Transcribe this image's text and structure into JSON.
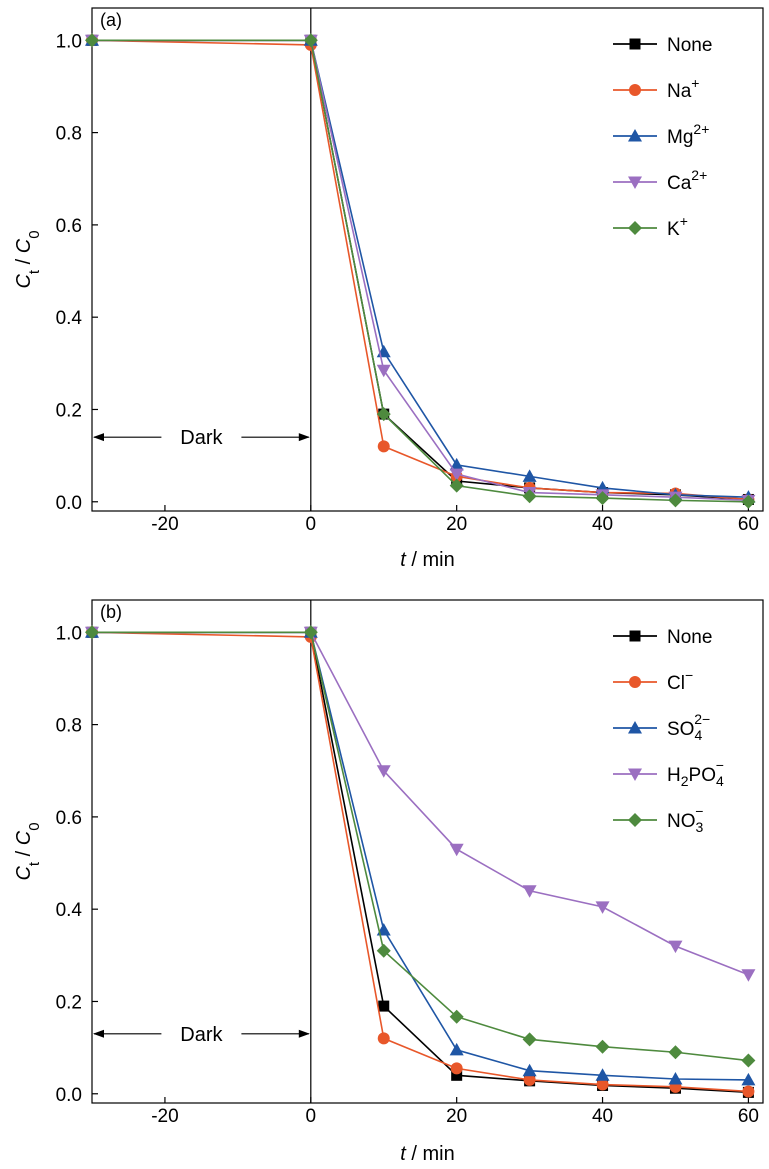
{
  "chart_data": [
    {
      "type": "line",
      "panel_label": "(a)",
      "xlabel": {
        "var": "t",
        "unit": " / min"
      },
      "ylabel": {
        "var": "C",
        "sub1": "t",
        "sep": " / ",
        "var2": "C",
        "sub2": "0"
      },
      "xlim": [
        -30,
        62
      ],
      "ylim": [
        -0.02,
        1.07
      ],
      "xticks": [
        -20,
        0,
        20,
        40,
        60
      ],
      "yticks": [
        0.0,
        0.2,
        0.4,
        0.6,
        0.8,
        1.0
      ],
      "ytick_labels": [
        "0.0",
        "0.2",
        "0.4",
        "0.6",
        "0.8",
        "1.0"
      ],
      "xtick_labels": [
        "-20",
        "0",
        "20",
        "40",
        "60"
      ],
      "vline_x": 0,
      "grid": false,
      "legend_position": "top-right",
      "annotation": {
        "text": "Dark",
        "from_x": -30,
        "to_x": 0,
        "y": 0.14
      },
      "series": [
        {
          "name": "None",
          "sup": "",
          "sub": "",
          "tail": "",
          "color": "#000000",
          "marker": "square",
          "x": [
            -30,
            0,
            10,
            20,
            30,
            40,
            50,
            60
          ],
          "y": [
            1.0,
            1.0,
            0.19,
            0.045,
            0.03,
            0.02,
            0.015,
            0.005
          ]
        },
        {
          "name": "Na",
          "sup": "+",
          "sub": "",
          "tail": "",
          "color": "#e8572a",
          "marker": "circle",
          "x": [
            -30,
            0,
            10,
            20,
            30,
            40,
            50,
            60
          ],
          "y": [
            1.0,
            0.99,
            0.12,
            0.055,
            0.03,
            0.02,
            0.018,
            0.005
          ]
        },
        {
          "name": "Mg",
          "sup": "2+",
          "sub": "",
          "tail": "",
          "color": "#1f56a5",
          "marker": "triangle-up",
          "x": [
            -30,
            0,
            10,
            20,
            30,
            40,
            50,
            60
          ],
          "y": [
            1.0,
            1.0,
            0.325,
            0.08,
            0.055,
            0.03,
            0.015,
            0.01
          ]
        },
        {
          "name": "Ca",
          "sup": "2+",
          "sub": "",
          "tail": "",
          "color": "#9b6fc1",
          "marker": "triangle-down",
          "x": [
            -30,
            0,
            10,
            20,
            30,
            40,
            50,
            60
          ],
          "y": [
            1.0,
            1.0,
            0.285,
            0.06,
            0.02,
            0.015,
            0.01,
            0.003
          ]
        },
        {
          "name": "K",
          "sup": "+",
          "sub": "",
          "tail": "",
          "color": "#4e8a3e",
          "marker": "diamond",
          "x": [
            -30,
            0,
            10,
            20,
            30,
            40,
            50,
            60
          ],
          "y": [
            1.0,
            1.0,
            0.19,
            0.035,
            0.012,
            0.008,
            0.003,
            0.0
          ]
        }
      ]
    },
    {
      "type": "line",
      "panel_label": "(b)",
      "xlabel": {
        "var": "t",
        "unit": " / min"
      },
      "ylabel": {
        "var": "C",
        "sub1": "t",
        "sep": " / ",
        "var2": "C",
        "sub2": "0"
      },
      "xlim": [
        -30,
        62
      ],
      "ylim": [
        -0.02,
        1.07
      ],
      "xticks": [
        -20,
        0,
        20,
        40,
        60
      ],
      "yticks": [
        0.0,
        0.2,
        0.4,
        0.6,
        0.8,
        1.0
      ],
      "ytick_labels": [
        "0.0",
        "0.2",
        "0.4",
        "0.6",
        "0.8",
        "1.0"
      ],
      "xtick_labels": [
        "-20",
        "0",
        "20",
        "40",
        "60"
      ],
      "vline_x": 0,
      "grid": false,
      "legend_position": "top-right",
      "annotation": {
        "text": "Dark",
        "from_x": -30,
        "to_x": 0,
        "y": 0.13
      },
      "series": [
        {
          "name": "None",
          "sup": "",
          "sub": "",
          "tail": "",
          "color": "#000000",
          "marker": "square",
          "x": [
            -30,
            0,
            10,
            20,
            30,
            40,
            50,
            60
          ],
          "y": [
            1.0,
            1.0,
            0.19,
            0.04,
            0.028,
            0.018,
            0.012,
            0.003
          ]
        },
        {
          "name": "Cl",
          "sup": "−",
          "sub": "",
          "tail": "",
          "color": "#e8572a",
          "marker": "circle",
          "x": [
            -30,
            0,
            10,
            20,
            30,
            40,
            50,
            60
          ],
          "y": [
            1.0,
            0.99,
            0.12,
            0.055,
            0.03,
            0.02,
            0.015,
            0.005
          ]
        },
        {
          "name": "SO",
          "sup": "2−",
          "sub": "4",
          "tail": "",
          "color": "#1f56a5",
          "marker": "triangle-up",
          "x": [
            -30,
            0,
            10,
            20,
            30,
            40,
            50,
            60
          ],
          "y": [
            1.0,
            1.0,
            0.355,
            0.095,
            0.05,
            0.04,
            0.032,
            0.03
          ]
        },
        {
          "name": "H",
          "sup": "−",
          "sub": "2",
          "tail": "PO",
          "tail_sub": "4",
          "color": "#9b6fc1",
          "marker": "triangle-down",
          "x": [
            -30,
            0,
            10,
            20,
            30,
            40,
            50,
            60
          ],
          "y": [
            1.0,
            1.0,
            0.7,
            0.53,
            0.44,
            0.405,
            0.32,
            0.258
          ]
        },
        {
          "name": "NO",
          "sup": "−",
          "sub": "3",
          "tail": "",
          "color": "#4e8a3e",
          "marker": "diamond",
          "x": [
            -30,
            0,
            10,
            20,
            30,
            40,
            50,
            60
          ],
          "y": [
            1.0,
            1.0,
            0.31,
            0.167,
            0.118,
            0.102,
            0.09,
            0.072
          ]
        }
      ]
    }
  ]
}
